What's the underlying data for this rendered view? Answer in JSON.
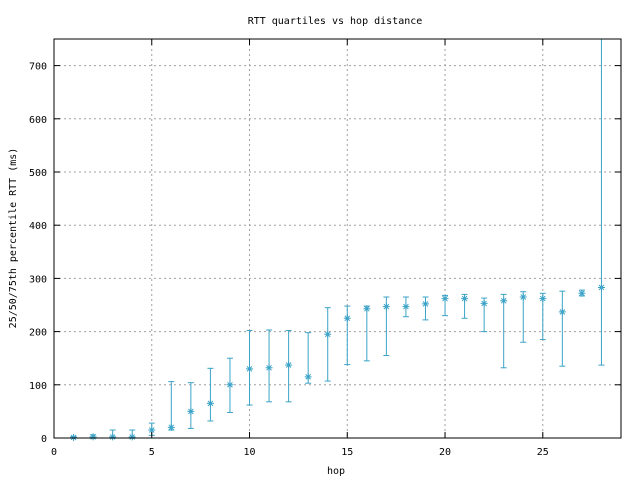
{
  "chart_data": {
    "type": "scatter",
    "title": "RTT quartiles vs hop distance",
    "xlabel": "hop",
    "ylabel": "25/50/75th percentile RTT (ms)",
    "xlim": [
      0,
      29
    ],
    "ylim": [
      0,
      750
    ],
    "xticks": [
      0,
      5,
      10,
      15,
      20,
      25
    ],
    "yticks": [
      0,
      100,
      200,
      300,
      400,
      500,
      600,
      700
    ],
    "grid": true,
    "legend": "none",
    "color": "#3ba3c7",
    "series": [
      {
        "x": [
          1,
          2,
          3,
          4,
          5,
          6,
          7,
          8,
          9,
          10,
          11,
          12,
          13,
          14,
          15,
          16,
          17,
          18,
          19,
          20,
          21,
          22,
          23,
          24,
          25,
          26,
          27,
          28
        ],
        "median": [
          1,
          2,
          2,
          2,
          15,
          20,
          50,
          65,
          100,
          130,
          132,
          137,
          115,
          195,
          225,
          243,
          247,
          247,
          252,
          262,
          262,
          253,
          258,
          265,
          262,
          237,
          272,
          283
        ],
        "p25": [
          0,
          0,
          0,
          0,
          5,
          15,
          18,
          32,
          48,
          62,
          68,
          68,
          103,
          107,
          138,
          145,
          155,
          228,
          222,
          230,
          225,
          200,
          132,
          180,
          185,
          135,
          267,
          137
        ],
        "p75": [
          3,
          6,
          15,
          15,
          28,
          106,
          104,
          131,
          150,
          202,
          203,
          202,
          198,
          245,
          248,
          248,
          265,
          265,
          265,
          268,
          270,
          263,
          270,
          275,
          272,
          276,
          278,
          750
        ]
      }
    ]
  }
}
